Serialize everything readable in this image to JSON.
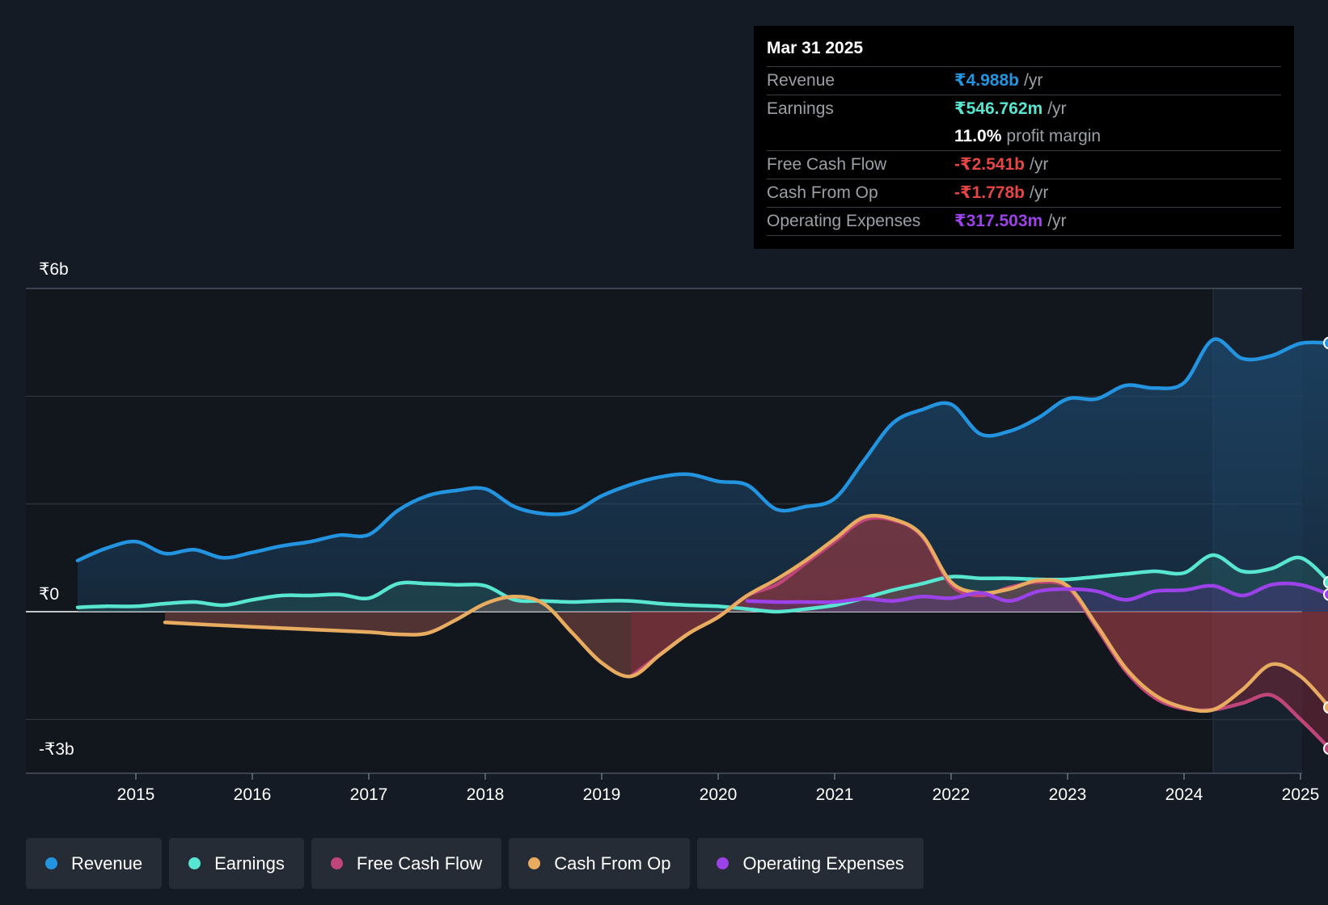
{
  "chart_data": {
    "type": "line",
    "y_axis": {
      "min": -3,
      "max": 6,
      "unit": "₹b",
      "labels": [
        {
          "value": 6,
          "text": "₹6b"
        },
        {
          "value": 0,
          "text": "₹0"
        },
        {
          "value": -3,
          "text": "-₹3b"
        }
      ]
    },
    "x_ticks": [
      {
        "year": 2015,
        "label": "2015"
      },
      {
        "year": 2016,
        "label": "2016"
      },
      {
        "year": 2017,
        "label": "2017"
      },
      {
        "year": 2018,
        "label": "2018"
      },
      {
        "year": 2019,
        "label": "2019"
      },
      {
        "year": 2020,
        "label": "2020"
      },
      {
        "year": 2021,
        "label": "2021"
      },
      {
        "year": 2022,
        "label": "2022"
      },
      {
        "year": 2023,
        "label": "2023"
      },
      {
        "year": 2024,
        "label": "2024"
      },
      {
        "year": 2025,
        "label": "2025"
      }
    ],
    "x_range": [
      2014.04,
      2025.25
    ],
    "highlight_start": 2024.25,
    "series": [
      {
        "name": "Revenue",
        "color": "#2394df",
        "points": [
          [
            2014.5,
            0.95
          ],
          [
            2014.75,
            1.18
          ],
          [
            2015.0,
            1.3
          ],
          [
            2015.25,
            1.08
          ],
          [
            2015.5,
            1.15
          ],
          [
            2015.75,
            1.0
          ],
          [
            2016.0,
            1.1
          ],
          [
            2016.25,
            1.22
          ],
          [
            2016.5,
            1.3
          ],
          [
            2016.75,
            1.42
          ],
          [
            2017.0,
            1.43
          ],
          [
            2017.25,
            1.88
          ],
          [
            2017.5,
            2.15
          ],
          [
            2017.75,
            2.25
          ],
          [
            2018.0,
            2.28
          ],
          [
            2018.25,
            1.95
          ],
          [
            2018.5,
            1.82
          ],
          [
            2018.75,
            1.85
          ],
          [
            2019.0,
            2.15
          ],
          [
            2019.25,
            2.36
          ],
          [
            2019.5,
            2.5
          ],
          [
            2019.75,
            2.55
          ],
          [
            2020.0,
            2.42
          ],
          [
            2020.25,
            2.35
          ],
          [
            2020.5,
            1.9
          ],
          [
            2020.75,
            1.95
          ],
          [
            2021.0,
            2.1
          ],
          [
            2021.25,
            2.8
          ],
          [
            2021.5,
            3.5
          ],
          [
            2021.75,
            3.75
          ],
          [
            2022.0,
            3.85
          ],
          [
            2022.25,
            3.3
          ],
          [
            2022.5,
            3.35
          ],
          [
            2022.75,
            3.6
          ],
          [
            2023.0,
            3.95
          ],
          [
            2023.25,
            3.95
          ],
          [
            2023.5,
            4.2
          ],
          [
            2023.75,
            4.15
          ],
          [
            2024.0,
            4.25
          ],
          [
            2024.25,
            5.05
          ],
          [
            2024.5,
            4.7
          ],
          [
            2024.75,
            4.75
          ],
          [
            2025.0,
            4.98
          ],
          [
            2025.25,
            4.988
          ]
        ]
      },
      {
        "name": "Earnings",
        "color": "#58e6d0",
        "points": [
          [
            2014.5,
            0.08
          ],
          [
            2014.75,
            0.1
          ],
          [
            2015.0,
            0.1
          ],
          [
            2015.25,
            0.15
          ],
          [
            2015.5,
            0.18
          ],
          [
            2015.75,
            0.12
          ],
          [
            2016.0,
            0.22
          ],
          [
            2016.25,
            0.3
          ],
          [
            2016.5,
            0.3
          ],
          [
            2016.75,
            0.32
          ],
          [
            2017.0,
            0.25
          ],
          [
            2017.25,
            0.52
          ],
          [
            2017.5,
            0.52
          ],
          [
            2017.75,
            0.5
          ],
          [
            2018.0,
            0.48
          ],
          [
            2018.25,
            0.22
          ],
          [
            2018.5,
            0.2
          ],
          [
            2018.75,
            0.18
          ],
          [
            2019.0,
            0.2
          ],
          [
            2019.25,
            0.2
          ],
          [
            2019.5,
            0.15
          ],
          [
            2019.75,
            0.12
          ],
          [
            2020.0,
            0.1
          ],
          [
            2020.25,
            0.05
          ],
          [
            2020.5,
            0.0
          ],
          [
            2020.75,
            0.05
          ],
          [
            2021.0,
            0.12
          ],
          [
            2021.25,
            0.25
          ],
          [
            2021.5,
            0.4
          ],
          [
            2021.75,
            0.52
          ],
          [
            2022.0,
            0.65
          ],
          [
            2022.25,
            0.62
          ],
          [
            2022.5,
            0.62
          ],
          [
            2022.75,
            0.6
          ],
          [
            2023.0,
            0.6
          ],
          [
            2023.25,
            0.65
          ],
          [
            2023.5,
            0.7
          ],
          [
            2023.75,
            0.75
          ],
          [
            2024.0,
            0.72
          ],
          [
            2024.25,
            1.05
          ],
          [
            2024.5,
            0.75
          ],
          [
            2024.75,
            0.8
          ],
          [
            2025.0,
            1.0
          ],
          [
            2025.25,
            0.547
          ]
        ]
      },
      {
        "name": "Free Cash Flow",
        "color": "#c0467a",
        "points": [
          [
            2019.25,
            -1.2
          ],
          [
            2019.5,
            -0.8
          ],
          [
            2019.75,
            -0.4
          ],
          [
            2020.0,
            -0.1
          ],
          [
            2020.25,
            0.3
          ],
          [
            2020.5,
            0.5
          ],
          [
            2020.75,
            0.9
          ],
          [
            2021.0,
            1.3
          ],
          [
            2021.25,
            1.7
          ],
          [
            2021.5,
            1.7
          ],
          [
            2021.75,
            1.4
          ],
          [
            2022.0,
            0.5
          ],
          [
            2022.25,
            0.3
          ],
          [
            2022.5,
            0.45
          ],
          [
            2022.75,
            0.55
          ],
          [
            2023.0,
            0.45
          ],
          [
            2023.25,
            -0.3
          ],
          [
            2023.5,
            -1.1
          ],
          [
            2023.75,
            -1.6
          ],
          [
            2024.0,
            -1.8
          ],
          [
            2024.25,
            -1.82
          ],
          [
            2024.5,
            -1.7
          ],
          [
            2024.75,
            -1.55
          ],
          [
            2025.0,
            -2.0
          ],
          [
            2025.25,
            -2.541
          ]
        ]
      },
      {
        "name": "Cash From Op",
        "color": "#e8ac60",
        "points": [
          [
            2015.25,
            -0.2
          ],
          [
            2015.5,
            -0.23
          ],
          [
            2016.0,
            -0.28
          ],
          [
            2016.5,
            -0.33
          ],
          [
            2017.0,
            -0.38
          ],
          [
            2017.25,
            -0.42
          ],
          [
            2017.5,
            -0.4
          ],
          [
            2017.75,
            -0.15
          ],
          [
            2018.0,
            0.15
          ],
          [
            2018.25,
            0.28
          ],
          [
            2018.5,
            0.15
          ],
          [
            2018.75,
            -0.4
          ],
          [
            2019.0,
            -0.95
          ],
          [
            2019.25,
            -1.2
          ],
          [
            2019.5,
            -0.8
          ],
          [
            2019.75,
            -0.4
          ],
          [
            2020.0,
            -0.1
          ],
          [
            2020.25,
            0.3
          ],
          [
            2020.5,
            0.6
          ],
          [
            2020.75,
            0.95
          ],
          [
            2021.0,
            1.35
          ],
          [
            2021.25,
            1.75
          ],
          [
            2021.5,
            1.72
          ],
          [
            2021.75,
            1.42
          ],
          [
            2022.0,
            0.55
          ],
          [
            2022.25,
            0.35
          ],
          [
            2022.5,
            0.42
          ],
          [
            2022.75,
            0.58
          ],
          [
            2023.0,
            0.48
          ],
          [
            2023.25,
            -0.25
          ],
          [
            2023.5,
            -1.05
          ],
          [
            2023.75,
            -1.55
          ],
          [
            2024.0,
            -1.78
          ],
          [
            2024.25,
            -1.82
          ],
          [
            2024.5,
            -1.45
          ],
          [
            2024.75,
            -0.98
          ],
          [
            2025.0,
            -1.2
          ],
          [
            2025.25,
            -1.778
          ]
        ]
      },
      {
        "name": "Operating Expenses",
        "color": "#9b42e8",
        "points": [
          [
            2020.25,
            0.2
          ],
          [
            2020.5,
            0.18
          ],
          [
            2020.75,
            0.18
          ],
          [
            2021.0,
            0.18
          ],
          [
            2021.25,
            0.24
          ],
          [
            2021.5,
            0.2
          ],
          [
            2021.75,
            0.28
          ],
          [
            2022.0,
            0.25
          ],
          [
            2022.25,
            0.35
          ],
          [
            2022.5,
            0.2
          ],
          [
            2022.75,
            0.38
          ],
          [
            2023.0,
            0.42
          ],
          [
            2023.25,
            0.38
          ],
          [
            2023.5,
            0.22
          ],
          [
            2023.75,
            0.38
          ],
          [
            2024.0,
            0.4
          ],
          [
            2024.25,
            0.48
          ],
          [
            2024.5,
            0.3
          ],
          [
            2024.75,
            0.5
          ],
          [
            2025.0,
            0.5
          ],
          [
            2025.25,
            0.318
          ]
        ]
      }
    ]
  },
  "tooltip": {
    "date": "Mar 31 2025",
    "rows": [
      {
        "label": "Revenue",
        "value": "₹4.988b",
        "unit": "/yr",
        "color": "#2394df"
      },
      {
        "label": "Earnings",
        "value": "₹546.762m",
        "unit": "/yr",
        "color": "#58e6d0"
      },
      {
        "label": "",
        "value": "11.0%",
        "unit": "profit margin",
        "color": "#ffffff"
      },
      {
        "label": "Free Cash Flow",
        "value": "-₹2.541b",
        "unit": "/yr",
        "color": "#e64545"
      },
      {
        "label": "Cash From Op",
        "value": "-₹1.778b",
        "unit": "/yr",
        "color": "#e64545"
      },
      {
        "label": "Operating Expenses",
        "value": "₹317.503m",
        "unit": "/yr",
        "color": "#9b42e8"
      }
    ]
  },
  "legend": [
    {
      "label": "Revenue",
      "color": "#2394df"
    },
    {
      "label": "Earnings",
      "color": "#58e6d0"
    },
    {
      "label": "Free Cash Flow",
      "color": "#c0467a"
    },
    {
      "label": "Cash From Op",
      "color": "#e8ac60"
    },
    {
      "label": "Operating Expenses",
      "color": "#9b42e8"
    }
  ]
}
